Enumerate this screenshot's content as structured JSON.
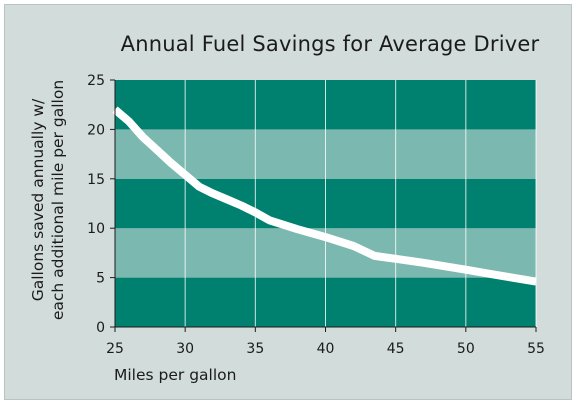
{
  "chart_data": {
    "type": "line",
    "title": "Annual Fuel Savings for Average Driver",
    "xlabel": "Miles per gallon",
    "ylabel_lines": [
      "Gallons saved annually w/",
      "each additional mile per gallon"
    ],
    "xlim": [
      25,
      55
    ],
    "ylim": [
      0,
      25
    ],
    "x_ticks": [
      25,
      30,
      35,
      40,
      45,
      50,
      55
    ],
    "y_ticks": [
      0,
      5,
      10,
      15,
      20,
      25
    ],
    "grid": true,
    "series": [
      {
        "x": [
          25,
          26,
          27,
          28,
          29,
          30,
          31,
          32,
          33,
          34,
          35,
          36,
          38,
          40,
          42,
          43.5,
          45,
          47,
          50,
          52,
          55
        ],
        "values": [
          22,
          20.8,
          19.2,
          17.9,
          16.6,
          15.4,
          14.2,
          13.5,
          12.9,
          12.3,
          11.6,
          10.8,
          9.9,
          9.1,
          8.2,
          7.2,
          6.9,
          6.5,
          5.8,
          5.3,
          4.6
        ]
      }
    ],
    "colors": {
      "band_dark": "#00806f",
      "band_light": "#7bb8b0",
      "line": "#ffffff",
      "background": "#d2dcdb"
    }
  }
}
